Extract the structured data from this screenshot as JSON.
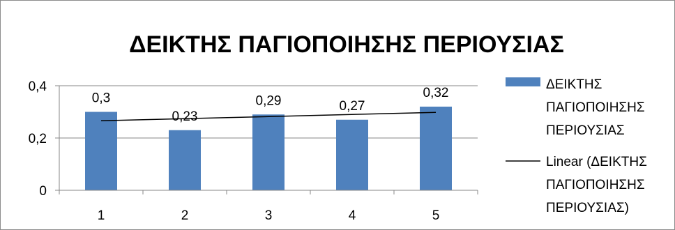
{
  "chart_data": {
    "type": "bar",
    "title": "ΔΕΙΚΤΗΣ ΠΑΓΙΟΠΟΙΗΣΗΣ ΠΕΡΙΟΥΣΙΑΣ",
    "categories": [
      "1",
      "2",
      "3",
      "4",
      "5"
    ],
    "series": [
      {
        "name": "ΔΕΙΚΤΗΣ ΠΑΓΙΟΠΟΙΗΣΗΣ ΠΕΡΙΟΥΣΙΑΣ",
        "values": [
          0.3,
          0.23,
          0.29,
          0.27,
          0.32
        ],
        "data_labels": [
          "0,3",
          "0,23",
          "0,29",
          "0,27",
          "0,32"
        ],
        "color": "#4f81bd"
      }
    ],
    "trendline": {
      "type": "linear",
      "name": "Linear (ΔΕΙΚΤΗΣ ΠΑΓΙΟΠΟΙΗΣΗΣ ΠΕΡΙΟΥΣΙΑΣ)",
      "color": "#000000"
    },
    "ylim": [
      0,
      0.4
    ],
    "yticks": [
      0,
      0.2,
      0.4
    ],
    "ytick_labels": [
      "0",
      "0,2",
      "0,4"
    ],
    "grid": true,
    "legend_position": "right",
    "legend": [
      {
        "marker": "bar",
        "lines": [
          "ΔΕΙΚΤΗΣ",
          "ΠΑΓΙΟΠΟΙΗΣΗΣ",
          "ΠΕΡΙΟΥΣΙΑΣ"
        ]
      },
      {
        "marker": "line",
        "lines": [
          "Linear (ΔΕΙΚΤΗΣ",
          "ΠΑΓΙΟΠΟΙΗΣΗΣ",
          "ΠΕΡΙΟΥΣΙΑΣ)"
        ]
      }
    ],
    "colors": {
      "bar": "#4f81bd",
      "gridline": "#878787",
      "axis": "#878787",
      "trend": "#000000"
    }
  }
}
